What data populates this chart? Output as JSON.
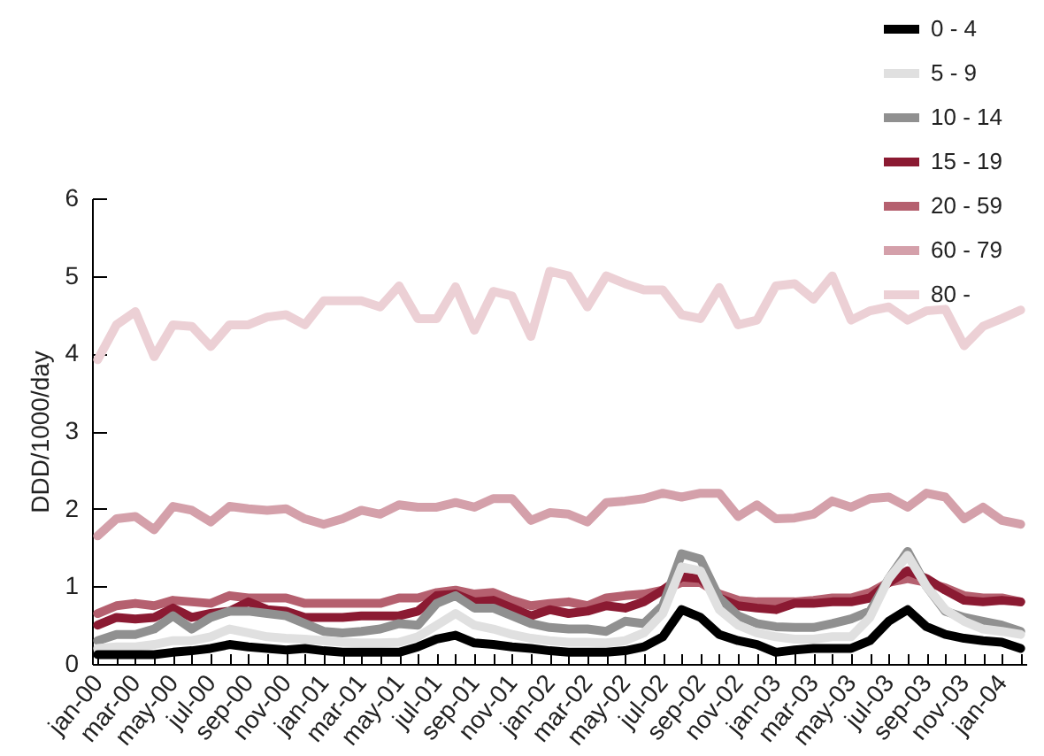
{
  "chart_data": {
    "type": "line",
    "ylabel": "DDD/1000/day",
    "ylim": [
      0,
      6
    ],
    "yticks": [
      0,
      1,
      2,
      3,
      4,
      5,
      6
    ],
    "grid": false,
    "legend": "top right",
    "marker": "none",
    "line_style": "solid",
    "categories": [
      "jan-00",
      null,
      "mar-00",
      null,
      "may-00",
      null,
      "jul-00",
      null,
      "sep-00",
      null,
      "nov-00",
      null,
      "jan-01",
      null,
      "mar-01",
      null,
      "may-01",
      null,
      "jul-01",
      null,
      "sep-01",
      null,
      "nov-01",
      null,
      "jan-02",
      null,
      "mar-02",
      null,
      "may-02",
      null,
      "jul-02",
      null,
      "sep-02",
      null,
      "nov-02",
      null,
      "jan-03",
      null,
      "mar-03",
      null,
      "may-03",
      null,
      "jul-03",
      null,
      "sep-03",
      null,
      "nov-03",
      null,
      "jan-04",
      null
    ],
    "series": [
      {
        "name": "0 - 4",
        "color": "#000000",
        "values": [
          0.12,
          0.12,
          0.12,
          0.12,
          0.15,
          0.17,
          0.2,
          0.25,
          0.22,
          0.2,
          0.18,
          0.2,
          0.17,
          0.15,
          0.15,
          0.15,
          0.15,
          0.22,
          0.32,
          0.37,
          0.27,
          0.25,
          0.22,
          0.2,
          0.17,
          0.15,
          0.15,
          0.15,
          0.17,
          0.22,
          0.35,
          0.7,
          0.6,
          0.38,
          0.3,
          0.25,
          0.15,
          0.18,
          0.2,
          0.2,
          0.2,
          0.3,
          0.55,
          0.7,
          0.48,
          0.38,
          0.33,
          0.3,
          0.28,
          0.2
        ]
      },
      {
        "name": "5 - 9",
        "color": "#e0e0e0",
        "values": [
          0.2,
          0.22,
          0.22,
          0.25,
          0.3,
          0.3,
          0.35,
          0.45,
          0.4,
          0.35,
          0.33,
          0.32,
          0.3,
          0.28,
          0.27,
          0.27,
          0.28,
          0.35,
          0.5,
          0.65,
          0.5,
          0.45,
          0.38,
          0.33,
          0.3,
          0.28,
          0.28,
          0.27,
          0.3,
          0.4,
          0.65,
          1.25,
          1.2,
          0.7,
          0.5,
          0.4,
          0.35,
          0.32,
          0.32,
          0.35,
          0.35,
          0.6,
          1.1,
          1.4,
          1.0,
          0.7,
          0.55,
          0.45,
          0.42,
          0.38
        ]
      },
      {
        "name": "10 - 14",
        "color": "#909090",
        "values": [
          0.3,
          0.38,
          0.38,
          0.45,
          0.62,
          0.45,
          0.6,
          0.68,
          0.68,
          0.65,
          0.62,
          0.52,
          0.42,
          0.4,
          0.42,
          0.45,
          0.52,
          0.5,
          0.78,
          0.88,
          0.72,
          0.72,
          0.62,
          0.52,
          0.47,
          0.45,
          0.45,
          0.42,
          0.55,
          0.52,
          0.75,
          1.42,
          1.35,
          0.85,
          0.62,
          0.52,
          0.48,
          0.47,
          0.47,
          0.52,
          0.58,
          0.68,
          1.1,
          1.45,
          1.0,
          0.68,
          0.6,
          0.55,
          0.5,
          0.42
        ]
      },
      {
        "name": "15 - 19",
        "color": "#8b1a32",
        "values": [
          0.5,
          0.6,
          0.58,
          0.6,
          0.72,
          0.6,
          0.65,
          0.68,
          0.8,
          0.7,
          0.68,
          0.6,
          0.6,
          0.6,
          0.62,
          0.62,
          0.62,
          0.68,
          0.88,
          0.9,
          0.8,
          0.82,
          0.72,
          0.62,
          0.7,
          0.65,
          0.68,
          0.75,
          0.72,
          0.8,
          0.95,
          1.12,
          1.1,
          0.85,
          0.75,
          0.72,
          0.7,
          0.78,
          0.78,
          0.8,
          0.8,
          0.85,
          1.05,
          1.2,
          1.1,
          0.95,
          0.82,
          0.8,
          0.82,
          0.8
        ]
      },
      {
        "name": "20 - 59",
        "color": "#b5606f",
        "values": [
          0.65,
          0.75,
          0.78,
          0.75,
          0.82,
          0.8,
          0.78,
          0.88,
          0.85,
          0.85,
          0.85,
          0.78,
          0.78,
          0.78,
          0.78,
          0.78,
          0.85,
          0.85,
          0.92,
          0.95,
          0.9,
          0.92,
          0.82,
          0.75,
          0.78,
          0.8,
          0.75,
          0.85,
          0.88,
          0.9,
          0.95,
          1.05,
          1.05,
          0.9,
          0.82,
          0.8,
          0.8,
          0.8,
          0.82,
          0.85,
          0.85,
          0.92,
          1.05,
          1.1,
          1.05,
          0.98,
          0.88,
          0.85,
          0.85,
          0.8
        ]
      },
      {
        "name": "60 - 79",
        "color": "#d4a0aa",
        "values": [
          1.65,
          1.87,
          1.9,
          1.73,
          2.03,
          1.98,
          1.83,
          2.03,
          2.0,
          1.98,
          2.0,
          1.87,
          1.8,
          1.87,
          1.98,
          1.93,
          2.05,
          2.02,
          2.02,
          2.08,
          2.02,
          2.13,
          2.13,
          1.85,
          1.95,
          1.93,
          1.83,
          2.08,
          2.1,
          2.13,
          2.2,
          2.15,
          2.2,
          2.2,
          1.9,
          2.05,
          1.87,
          1.88,
          1.93,
          2.1,
          2.02,
          2.13,
          2.15,
          2.02,
          2.2,
          2.15,
          1.87,
          2.02,
          1.85,
          1.8
        ]
      },
      {
        "name": "80 -",
        "color": "#ecd0d5",
        "values": [
          3.92,
          4.37,
          4.54,
          3.96,
          4.37,
          4.35,
          4.09,
          4.37,
          4.37,
          4.47,
          4.5,
          4.37,
          4.68,
          4.68,
          4.68,
          4.6,
          4.87,
          4.45,
          4.45,
          4.86,
          4.3,
          4.8,
          4.74,
          4.22,
          5.06,
          5.0,
          4.6,
          5.0,
          4.9,
          4.82,
          4.82,
          4.5,
          4.45,
          4.85,
          4.37,
          4.43,
          4.87,
          4.9,
          4.7,
          5.0,
          4.43,
          4.55,
          4.6,
          4.43,
          4.55,
          4.57,
          4.1,
          4.35,
          4.45,
          4.56
        ]
      }
    ]
  }
}
